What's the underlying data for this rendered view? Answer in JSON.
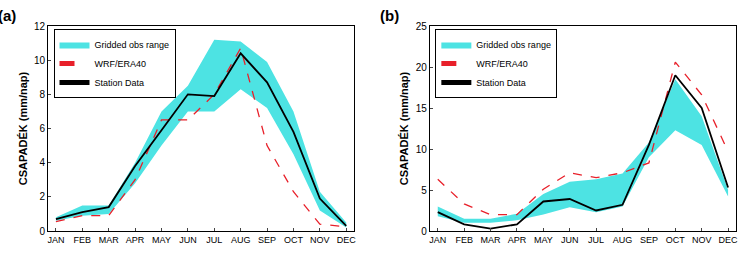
{
  "chart_data": [
    {
      "type": "line",
      "title": "(a)",
      "y_label": "CSAPADÉK (mm/nap)",
      "categories": [
        "JAN",
        "FEB",
        "MAR",
        "APR",
        "MAY",
        "JUN",
        "JUL",
        "AUG",
        "SEP",
        "OCT",
        "NOV",
        "DEC"
      ],
      "ylim": [
        0,
        12
      ],
      "yticks": [
        0,
        2,
        4,
        6,
        8,
        10,
        12
      ],
      "grid": false,
      "legend": "upper left",
      "series": [
        {
          "name": "Gridded obs range",
          "type": "band",
          "color": "#4de3e3",
          "lower": [
            0.6,
            0.9,
            1.0,
            2.8,
            5.0,
            7.0,
            7.0,
            8.3,
            7.2,
            4.5,
            1.2,
            0.2
          ],
          "upper": [
            0.8,
            1.5,
            1.5,
            4.0,
            7.0,
            8.5,
            11.2,
            11.1,
            9.9,
            7.0,
            2.3,
            0.5
          ]
        },
        {
          "name": "WRF/ERA40",
          "type": "line",
          "color": "#e8202a",
          "line_style": "dashed",
          "values": [
            0.55,
            0.9,
            0.9,
            3.0,
            6.5,
            6.5,
            8.0,
            10.7,
            5.0,
            2.3,
            0.4,
            0.25
          ]
        },
        {
          "name": "Station Data",
          "type": "line",
          "color": "#000000",
          "line_style": "solid",
          "values": [
            0.7,
            1.1,
            1.4,
            3.8,
            5.9,
            8.0,
            7.9,
            10.4,
            8.7,
            5.8,
            1.9,
            0.3
          ]
        }
      ]
    },
    {
      "type": "line",
      "title": "(b)",
      "y_label": "CSAPADÉK (mm/nap)",
      "categories": [
        "JAN",
        "FEB",
        "MAR",
        "APR",
        "MAY",
        "JUN",
        "JUL",
        "AUG",
        "SEP",
        "OCT",
        "NOV",
        "DEC"
      ],
      "ylim": [
        0,
        25
      ],
      "yticks": [
        0,
        5,
        10,
        15,
        20,
        25
      ],
      "grid": false,
      "legend": "upper left",
      "series": [
        {
          "name": "Gridded obs range",
          "type": "band",
          "color": "#4de3e3",
          "lower": [
            1.8,
            1.0,
            1.0,
            1.3,
            2.0,
            2.9,
            2.3,
            3.0,
            9.0,
            12.3,
            10.5,
            4.2
          ],
          "upper": [
            3.0,
            1.5,
            1.5,
            2.1,
            4.5,
            6.0,
            6.3,
            7.0,
            10.8,
            18.5,
            14.0,
            5.0
          ]
        },
        {
          "name": "WRF/ERA40",
          "type": "line",
          "color": "#e8202a",
          "line_style": "dashed",
          "values": [
            6.3,
            3.3,
            2.0,
            2.0,
            5.1,
            7.1,
            6.5,
            7.1,
            8.3,
            20.6,
            16.6,
            9.7
          ]
        },
        {
          "name": "Station Data",
          "type": "line",
          "color": "#000000",
          "line_style": "solid",
          "values": [
            2.3,
            0.8,
            0.3,
            0.8,
            3.6,
            3.9,
            2.5,
            3.2,
            10.5,
            19.0,
            15.0,
            5.3
          ]
        }
      ]
    }
  ]
}
